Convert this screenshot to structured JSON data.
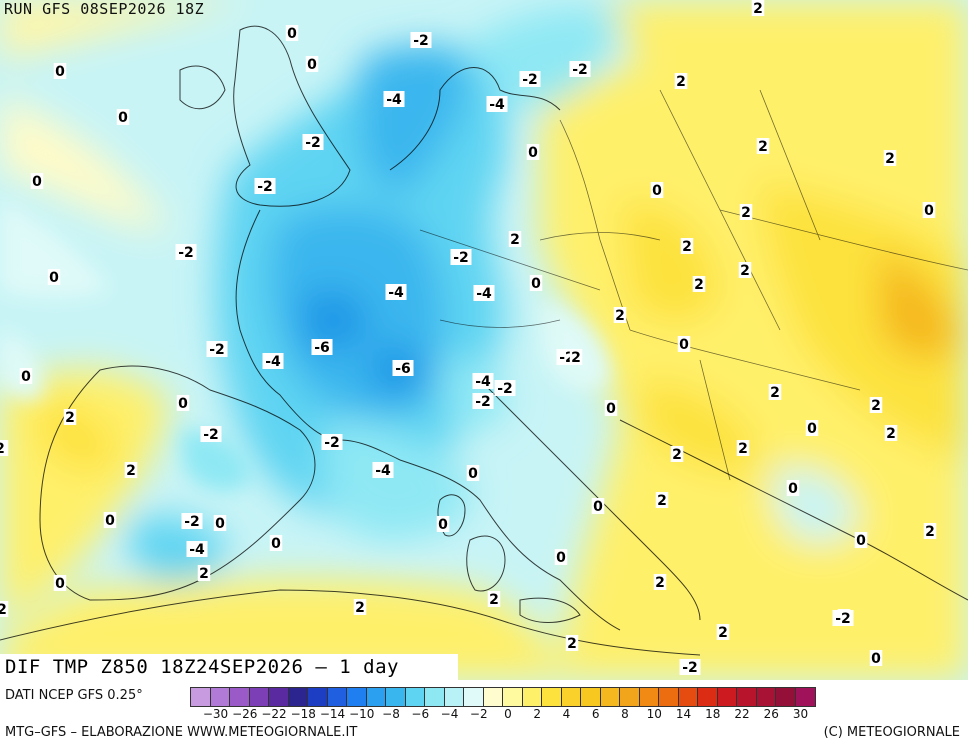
{
  "header": {
    "run_title": "RUN GFS 08SEP2026 18Z"
  },
  "map": {
    "title": "DIF TMP Z850 18Z24SEP2026 – 1 day",
    "variable": "DIF TMP Z850",
    "palette_note": "cold anomalies blue, warm anomalies yellow/orange",
    "colors": {
      "neutral": "#c8f4f6",
      "cold_1": "#8ee8f4",
      "cold_2": "#5fd4f2",
      "cold_3": "#3ab6ee",
      "cold_4": "#1f96e6",
      "warm_1": "#fffaa0",
      "warm_2": "#fff06a",
      "warm_3": "#fde23e",
      "warm_4": "#f7c820",
      "warm_5": "#f2a51a"
    },
    "contour_labels": [
      "0",
      "-2",
      "-2",
      "-2",
      "-4",
      "-4",
      "0",
      "0",
      "0",
      "-2",
      "-2",
      "-2",
      "0",
      "-4",
      "-4",
      "-6",
      "-6",
      "-2",
      "0",
      "2",
      "-4",
      "-2",
      "-2",
      "0",
      "-2",
      "0",
      "-2",
      "0",
      "-4",
      "-4",
      "-4",
      "-2",
      "-2",
      "0",
      "-2",
      "0",
      "0",
      "0",
      "2",
      "2",
      "2",
      "2",
      "0",
      "0",
      "2",
      "2",
      "2",
      "0",
      "2",
      "2",
      "0",
      "2",
      "2",
      "2",
      "2",
      "2",
      "0",
      "2",
      "2",
      "0",
      "0",
      "2",
      "2",
      "2",
      "0",
      "2",
      "2",
      "0",
      "0",
      "2",
      "2",
      "-2",
      "0",
      "2",
      "2",
      "0",
      "2",
      "2",
      "2",
      "-2",
      "0",
      "2"
    ]
  },
  "legend": {
    "data_source": "DATI NCEP GFS 0.25°",
    "colors": [
      "#c89be0",
      "#b07ad6",
      "#9a5ac8",
      "#7d3fb5",
      "#5a2aa0",
      "#2c2590",
      "#1d3ec2",
      "#1f5fe0",
      "#1f7ff0",
      "#2b9ff0",
      "#3ab6ee",
      "#5fd4f2",
      "#8ee8f4",
      "#b8f2f6",
      "#dffaf8",
      "#fffcd0",
      "#fffaa0",
      "#fff06a",
      "#fde23e",
      "#f9d12a",
      "#f7c820",
      "#f5b81e",
      "#f2a51a",
      "#f08a14",
      "#ec6c10",
      "#e64c10",
      "#dc2c14",
      "#cc1a20",
      "#b8142c",
      "#a81234",
      "#941038",
      "#a0125a"
    ],
    "ticks": [
      "−30",
      "−26",
      "−22",
      "−18",
      "−14",
      "−10",
      "−8",
      "−6",
      "−4",
      "−2",
      "0",
      "2",
      "4",
      "6",
      "8",
      "10",
      "14",
      "18",
      "22",
      "26",
      "30"
    ]
  },
  "footer": {
    "credit_left": "MTG–GFS – ELABORAZIONE WWW.METEOGIORNALE.IT",
    "credit_right": "(C) METEOGIORNALE"
  }
}
